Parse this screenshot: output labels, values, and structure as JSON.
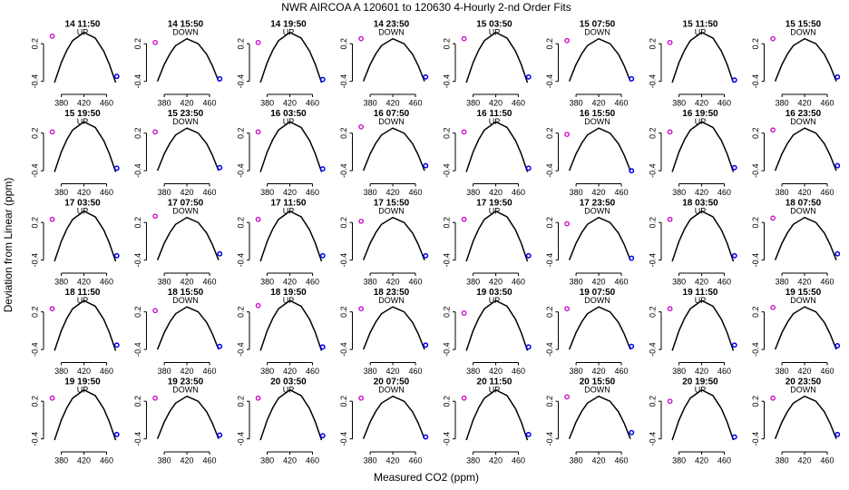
{
  "chart_data": {
    "type": "line",
    "title": "NWR   AIRCOA A   120601 to 120630   4-Hourly 2-nd Order Fits",
    "x_label": "Measured CO2 (ppm)",
    "y_label": "Deviation from Linear (ppm)",
    "xlim": [
      355,
      480
    ],
    "ylim": [
      -0.55,
      0.42
    ],
    "xticks": [
      380,
      420,
      460
    ],
    "yticks": [
      -0.4,
      0.2
    ],
    "x": [
      368,
      380,
      390,
      400,
      420,
      440,
      455,
      465,
      476
    ],
    "fit_color": "#000000",
    "low_color": "#cc00cc",
    "high_color": "#0000ee",
    "panels": [
      {
        "title": "14 11:50",
        "annotation": "UP",
        "fit": [
          -0.42,
          -0.1,
          0.1,
          0.25,
          0.38,
          0.29,
          0.08,
          -0.13,
          -0.42
        ],
        "low_point": [
          364,
          0.32
        ],
        "high_point": [
          478,
          -0.32
        ]
      },
      {
        "title": "14 15:50",
        "annotation": "DOWN",
        "fit": [
          -0.4,
          -0.13,
          0.04,
          0.17,
          0.28,
          0.2,
          0.03,
          -0.15,
          -0.4
        ],
        "low_point": [
          364,
          0.22
        ],
        "high_point": [
          478,
          -0.36
        ]
      },
      {
        "title": "14 19:50",
        "annotation": "UP",
        "fit": [
          -0.42,
          -0.1,
          0.1,
          0.25,
          0.38,
          0.29,
          0.08,
          -0.13,
          -0.42
        ],
        "low_point": [
          364,
          0.22
        ],
        "high_point": [
          478,
          -0.37
        ]
      },
      {
        "title": "14 23:50",
        "annotation": "DOWN",
        "fit": [
          -0.4,
          -0.13,
          0.04,
          0.17,
          0.28,
          0.2,
          0.03,
          -0.15,
          -0.4
        ],
        "low_point": [
          364,
          0.28
        ],
        "high_point": [
          478,
          -0.33
        ]
      },
      {
        "title": "15 03:50",
        "annotation": "UP",
        "fit": [
          -0.42,
          -0.1,
          0.1,
          0.25,
          0.38,
          0.29,
          0.08,
          -0.13,
          -0.42
        ],
        "low_point": [
          364,
          0.28
        ],
        "high_point": [
          478,
          -0.33
        ]
      },
      {
        "title": "15 07:50",
        "annotation": "DOWN",
        "fit": [
          -0.4,
          -0.13,
          0.04,
          0.17,
          0.28,
          0.2,
          0.03,
          -0.15,
          -0.4
        ],
        "low_point": [
          364,
          0.25
        ],
        "high_point": [
          478,
          -0.36
        ]
      },
      {
        "title": "15 11:50",
        "annotation": "UP",
        "fit": [
          -0.42,
          -0.1,
          0.1,
          0.25,
          0.38,
          0.29,
          0.08,
          -0.13,
          -0.42
        ],
        "low_point": [
          364,
          0.22
        ],
        "high_point": [
          478,
          -0.38
        ]
      },
      {
        "title": "15 15:50",
        "annotation": "DOWN",
        "fit": [
          -0.4,
          -0.13,
          0.04,
          0.17,
          0.28,
          0.2,
          0.03,
          -0.15,
          -0.4
        ],
        "low_point": [
          364,
          0.28
        ],
        "high_point": [
          478,
          -0.33
        ]
      },
      {
        "title": "15 19:50",
        "annotation": "UP",
        "fit": [
          -0.42,
          -0.1,
          0.1,
          0.25,
          0.38,
          0.29,
          0.08,
          -0.13,
          -0.42
        ],
        "low_point": [
          364,
          0.22
        ],
        "high_point": [
          478,
          -0.36
        ]
      },
      {
        "title": "15 23:50",
        "annotation": "DOWN",
        "fit": [
          -0.4,
          -0.13,
          0.04,
          0.17,
          0.28,
          0.2,
          0.03,
          -0.15,
          -0.4
        ],
        "low_point": [
          364,
          0.22
        ],
        "high_point": [
          478,
          -0.35
        ]
      },
      {
        "title": "16 03:50",
        "annotation": "UP",
        "fit": [
          -0.42,
          -0.1,
          0.1,
          0.25,
          0.38,
          0.29,
          0.08,
          -0.13,
          -0.42
        ],
        "low_point": [
          364,
          0.22
        ],
        "high_point": [
          478,
          -0.37
        ]
      },
      {
        "title": "16 07:50",
        "annotation": "DOWN",
        "fit": [
          -0.4,
          -0.13,
          0.04,
          0.17,
          0.28,
          0.2,
          0.03,
          -0.15,
          -0.4
        ],
        "low_point": [
          364,
          0.3
        ],
        "high_point": [
          478,
          -0.32
        ]
      },
      {
        "title": "16 11:50",
        "annotation": "UP",
        "fit": [
          -0.42,
          -0.1,
          0.1,
          0.25,
          0.38,
          0.29,
          0.08,
          -0.13,
          -0.42
        ],
        "low_point": [
          364,
          0.22
        ],
        "high_point": [
          478,
          -0.36
        ]
      },
      {
        "title": "16 15:50",
        "annotation": "DOWN",
        "fit": [
          -0.4,
          -0.13,
          0.04,
          0.17,
          0.28,
          0.2,
          0.03,
          -0.15,
          -0.4
        ],
        "low_point": [
          364,
          0.18
        ],
        "high_point": [
          478,
          -0.4
        ]
      },
      {
        "title": "16 19:50",
        "annotation": "UP",
        "fit": [
          -0.42,
          -0.1,
          0.1,
          0.25,
          0.38,
          0.29,
          0.08,
          -0.13,
          -0.42
        ],
        "low_point": [
          364,
          0.22
        ],
        "high_point": [
          478,
          -0.35
        ]
      },
      {
        "title": "16 23:50",
        "annotation": "DOWN",
        "fit": [
          -0.4,
          -0.13,
          0.04,
          0.17,
          0.28,
          0.2,
          0.03,
          -0.15,
          -0.4
        ],
        "low_point": [
          364,
          0.25
        ],
        "high_point": [
          478,
          -0.32
        ]
      },
      {
        "title": "17 03:50",
        "annotation": "UP",
        "fit": [
          -0.42,
          -0.1,
          0.1,
          0.25,
          0.38,
          0.29,
          0.08,
          -0.13,
          -0.42
        ],
        "low_point": [
          364,
          0.25
        ],
        "high_point": [
          478,
          -0.33
        ]
      },
      {
        "title": "17 07:50",
        "annotation": "DOWN",
        "fit": [
          -0.4,
          -0.13,
          0.04,
          0.17,
          0.28,
          0.2,
          0.03,
          -0.15,
          -0.4
        ],
        "low_point": [
          364,
          0.3
        ],
        "high_point": [
          478,
          -0.3
        ]
      },
      {
        "title": "17 11:50",
        "annotation": "UP",
        "fit": [
          -0.42,
          -0.1,
          0.1,
          0.25,
          0.38,
          0.29,
          0.08,
          -0.13,
          -0.42
        ],
        "low_point": [
          364,
          0.25
        ],
        "high_point": [
          478,
          -0.33
        ]
      },
      {
        "title": "17 15:50",
        "annotation": "DOWN",
        "fit": [
          -0.4,
          -0.13,
          0.04,
          0.17,
          0.28,
          0.2,
          0.03,
          -0.15,
          -0.4
        ],
        "low_point": [
          364,
          0.22
        ],
        "high_point": [
          478,
          -0.33
        ]
      },
      {
        "title": "17 19:50",
        "annotation": "UP",
        "fit": [
          -0.42,
          -0.1,
          0.1,
          0.25,
          0.38,
          0.29,
          0.08,
          -0.13,
          -0.42
        ],
        "low_point": [
          364,
          0.25
        ],
        "high_point": [
          478,
          -0.33
        ]
      },
      {
        "title": "17 23:50",
        "annotation": "DOWN",
        "fit": [
          -0.4,
          -0.13,
          0.04,
          0.17,
          0.28,
          0.2,
          0.03,
          -0.15,
          -0.4
        ],
        "low_point": [
          364,
          0.18
        ],
        "high_point": [
          478,
          -0.37
        ]
      },
      {
        "title": "18 03:50",
        "annotation": "UP",
        "fit": [
          -0.42,
          -0.1,
          0.1,
          0.25,
          0.38,
          0.29,
          0.08,
          -0.13,
          -0.42
        ],
        "low_point": [
          364,
          0.25
        ],
        "high_point": [
          478,
          -0.33
        ]
      },
      {
        "title": "18 07:50",
        "annotation": "DOWN",
        "fit": [
          -0.4,
          -0.13,
          0.04,
          0.17,
          0.28,
          0.2,
          0.03,
          -0.15,
          -0.4
        ],
        "low_point": [
          364,
          0.27
        ],
        "high_point": [
          478,
          -0.3
        ]
      },
      {
        "title": "18 11:50",
        "annotation": "UP",
        "fit": [
          -0.42,
          -0.1,
          0.1,
          0.25,
          0.38,
          0.29,
          0.08,
          -0.13,
          -0.42
        ],
        "low_point": [
          364,
          0.25
        ],
        "high_point": [
          478,
          -0.33
        ]
      },
      {
        "title": "18 15:50",
        "annotation": "DOWN",
        "fit": [
          -0.4,
          -0.13,
          0.04,
          0.17,
          0.28,
          0.2,
          0.03,
          -0.15,
          -0.4
        ],
        "low_point": [
          364,
          0.22
        ],
        "high_point": [
          478,
          -0.35
        ]
      },
      {
        "title": "18 19:50",
        "annotation": "UP",
        "fit": [
          -0.42,
          -0.1,
          0.1,
          0.25,
          0.38,
          0.29,
          0.08,
          -0.13,
          -0.42
        ],
        "low_point": [
          364,
          0.3
        ],
        "high_point": [
          478,
          -0.36
        ]
      },
      {
        "title": "18 23:50",
        "annotation": "DOWN",
        "fit": [
          -0.4,
          -0.13,
          0.04,
          0.17,
          0.28,
          0.2,
          0.03,
          -0.15,
          -0.4
        ],
        "low_point": [
          364,
          0.25
        ],
        "high_point": [
          478,
          -0.33
        ]
      },
      {
        "title": "19 03:50",
        "annotation": "UP",
        "fit": [
          -0.42,
          -0.1,
          0.1,
          0.25,
          0.38,
          0.29,
          0.08,
          -0.13,
          -0.42
        ],
        "low_point": [
          364,
          0.18
        ],
        "high_point": [
          478,
          -0.36
        ]
      },
      {
        "title": "19 07:50",
        "annotation": "DOWN",
        "fit": [
          -0.4,
          -0.13,
          0.04,
          0.17,
          0.28,
          0.2,
          0.03,
          -0.15,
          -0.4
        ],
        "low_point": [
          364,
          0.25
        ],
        "high_point": [
          478,
          -0.35
        ]
      },
      {
        "title": "19 11:50",
        "annotation": "UP",
        "fit": [
          -0.42,
          -0.1,
          0.1,
          0.25,
          0.38,
          0.29,
          0.08,
          -0.13,
          -0.42
        ],
        "low_point": [
          364,
          0.25
        ],
        "high_point": [
          478,
          -0.33
        ]
      },
      {
        "title": "19 15:50",
        "annotation": "DOWN",
        "fit": [
          -0.4,
          -0.13,
          0.04,
          0.17,
          0.28,
          0.2,
          0.03,
          -0.15,
          -0.4
        ],
        "low_point": [
          364,
          0.27
        ],
        "high_point": [
          478,
          -0.34
        ]
      },
      {
        "title": "19 19:50",
        "annotation": "UP",
        "fit": [
          -0.42,
          -0.1,
          0.1,
          0.25,
          0.38,
          0.29,
          0.08,
          -0.13,
          -0.42
        ],
        "low_point": [
          364,
          0.25
        ],
        "high_point": [
          478,
          -0.33
        ]
      },
      {
        "title": "19 23:50",
        "annotation": "DOWN",
        "fit": [
          -0.4,
          -0.13,
          0.04,
          0.17,
          0.28,
          0.2,
          0.03,
          -0.15,
          -0.4
        ],
        "low_point": [
          364,
          0.25
        ],
        "high_point": [
          478,
          -0.34
        ]
      },
      {
        "title": "20 03:50",
        "annotation": "UP",
        "fit": [
          -0.42,
          -0.1,
          0.1,
          0.25,
          0.38,
          0.29,
          0.08,
          -0.13,
          -0.42
        ],
        "low_point": [
          364,
          0.25
        ],
        "high_point": [
          478,
          -0.35
        ]
      },
      {
        "title": "20 07:50",
        "annotation": "DOWN",
        "fit": [
          -0.4,
          -0.13,
          0.04,
          0.17,
          0.28,
          0.2,
          0.03,
          -0.15,
          -0.4
        ],
        "low_point": [
          364,
          0.25
        ],
        "high_point": [
          478,
          -0.37
        ]
      },
      {
        "title": "20 11:50",
        "annotation": "UP",
        "fit": [
          -0.42,
          -0.1,
          0.1,
          0.25,
          0.38,
          0.29,
          0.08,
          -0.13,
          -0.42
        ],
        "low_point": [
          364,
          0.25
        ],
        "high_point": [
          478,
          -0.33
        ]
      },
      {
        "title": "20 15:50",
        "annotation": "DOWN",
        "fit": [
          -0.4,
          -0.13,
          0.04,
          0.17,
          0.28,
          0.2,
          0.03,
          -0.15,
          -0.4
        ],
        "low_point": [
          364,
          0.27
        ],
        "high_point": [
          478,
          -0.3
        ]
      },
      {
        "title": "20 19:50",
        "annotation": "UP",
        "fit": [
          -0.42,
          -0.1,
          0.1,
          0.25,
          0.38,
          0.29,
          0.08,
          -0.13,
          -0.42
        ],
        "low_point": [
          364,
          0.2
        ],
        "high_point": [
          478,
          -0.37
        ]
      },
      {
        "title": "20 23:50",
        "annotation": "DOWN",
        "fit": [
          -0.4,
          -0.13,
          0.04,
          0.17,
          0.28,
          0.2,
          0.03,
          -0.15,
          -0.4
        ],
        "low_point": [
          364,
          0.25
        ],
        "high_point": [
          478,
          -0.33
        ]
      }
    ]
  }
}
